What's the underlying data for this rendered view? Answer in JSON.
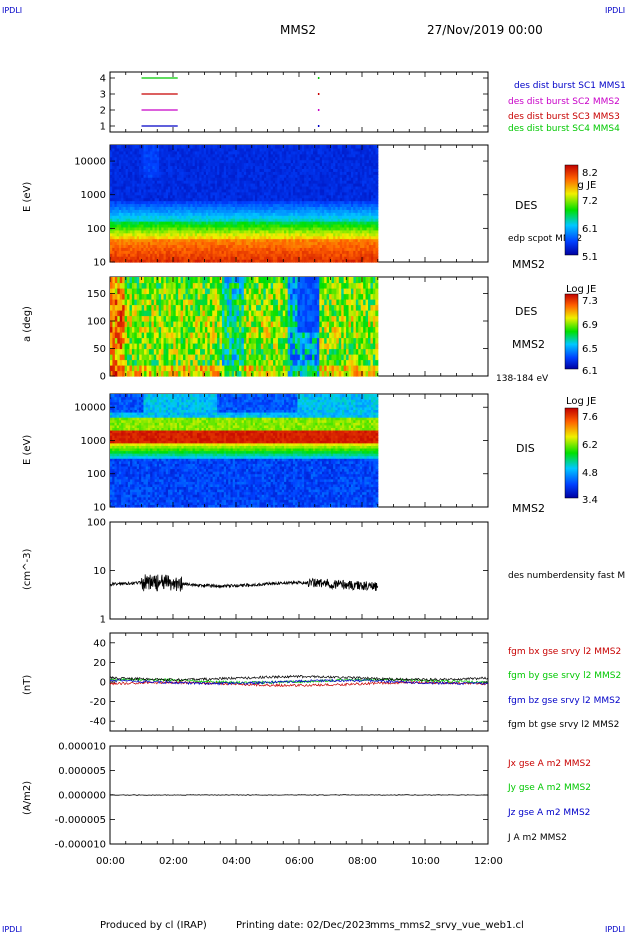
{
  "header": {
    "logo_left": "IPDLI",
    "logo_right": "IPDLI",
    "spacecraft": "MMS2",
    "date": "27/Nov/2019 00:00"
  },
  "footer": {
    "produced_by": "Produced by cl (IRAP)",
    "printing_date": "Printing date: 02/Dec/2023",
    "file": "mms_mms2_srvy_vue_web1.cl",
    "logo_left": "IPDLI",
    "logo_right": "IPDLI"
  },
  "time_axis": {
    "start": "00:00",
    "end": "12:00",
    "ticks": [
      "00:00",
      "02:00",
      "04:00",
      "06:00",
      "08:00",
      "10:00",
      "12:00"
    ]
  },
  "chart_data": [
    {
      "type": "line",
      "id": "burst",
      "y_ticks": [
        "1",
        "2",
        "3",
        "4"
      ],
      "legend": [
        {
          "label": "des dist burst SC1 MMS1",
          "color": "#0000c8"
        },
        {
          "label": "des dist burst SC2 MMS2",
          "color": "#c800c8"
        },
        {
          "label": "des dist burst SC3 MMS3",
          "color": "#c80000"
        },
        {
          "label": "des dist burst SC4 MMS4",
          "color": "#00c800"
        }
      ],
      "series": [
        {
          "y": 4,
          "color": "#00c800",
          "x": [
            1.0,
            2.15
          ]
        },
        {
          "y": 3,
          "color": "#c80000",
          "x": [
            1.0,
            2.15
          ]
        },
        {
          "y": 2,
          "color": "#c800c8",
          "x": [
            1.0,
            2.15
          ]
        },
        {
          "y": 1,
          "color": "#0000c8",
          "x": [
            1.0,
            2.15
          ]
        }
      ]
    },
    {
      "type": "heatmap",
      "id": "des_energy",
      "ylabel": "E (eV)",
      "y_ticks": [
        "10",
        "100",
        "1000",
        "10000"
      ],
      "side_label": "DES",
      "side_note": "edp scpot MMS2",
      "sc_label": "MMS2",
      "colorbar": {
        "title": "Log JE",
        "ticks": [
          "8.2",
          "7.2",
          "6.1",
          "5.1"
        ]
      }
    },
    {
      "type": "heatmap",
      "id": "des_pitch",
      "ylabel": "a (deg)",
      "y_ticks": [
        "0",
        "50",
        "100",
        "150"
      ],
      "side_label": "DES",
      "sc_label": "MMS2",
      "energy_range": "138-184 eV",
      "colorbar": {
        "title": "Log JE",
        "ticks": [
          "7.3",
          "6.9",
          "6.5",
          "6.1"
        ]
      }
    },
    {
      "type": "heatmap",
      "id": "dis_energy",
      "ylabel": "E (eV)",
      "y_ticks": [
        "10",
        "100",
        "1000",
        "10000"
      ],
      "side_label": "DIS",
      "sc_label": "MMS2",
      "colorbar": {
        "title": "Log JE",
        "ticks": [
          "7.6",
          "6.2",
          "4.8",
          "3.4"
        ]
      }
    },
    {
      "type": "line",
      "id": "density",
      "ylabel": "(cm^-3)",
      "y_ticks": [
        "1",
        "10",
        "100"
      ],
      "legend": [
        {
          "label": "des numberdensity fast M",
          "color": "#000000"
        }
      ]
    },
    {
      "type": "line",
      "id": "bfield",
      "ylabel": "(nT)",
      "y_ticks": [
        "40",
        "20",
        "0",
        "-20",
        "-40"
      ],
      "ylim": [
        -50,
        50
      ],
      "legend": [
        {
          "label": "fgm bx gse srvy l2 MMS2",
          "color": "#c80000"
        },
        {
          "label": "fgm by gse srvy l2 MMS2",
          "color": "#00c800"
        },
        {
          "label": "fgm bz gse srvy l2 MMS2",
          "color": "#0000c8"
        },
        {
          "label": "fgm bt gse srvy l2 MMS2",
          "color": "#000000"
        }
      ]
    },
    {
      "type": "line",
      "id": "current",
      "ylabel": "(A/m2)",
      "y_ticks": [
        "0.000010",
        "0.000005",
        "0.000000",
        "-0.000005",
        "-0.000010"
      ],
      "ylim": [
        -1e-05,
        1e-05
      ],
      "legend": [
        {
          "label": "Jx gse A m2 MMS2",
          "color": "#c80000"
        },
        {
          "label": "Jy gse A m2 MMS2",
          "color": "#00c800"
        },
        {
          "label": "Jz gse A m2 MMS2",
          "color": "#0000c8"
        },
        {
          "label": "J A m2 MMS2",
          "color": "#000000"
        }
      ]
    }
  ]
}
